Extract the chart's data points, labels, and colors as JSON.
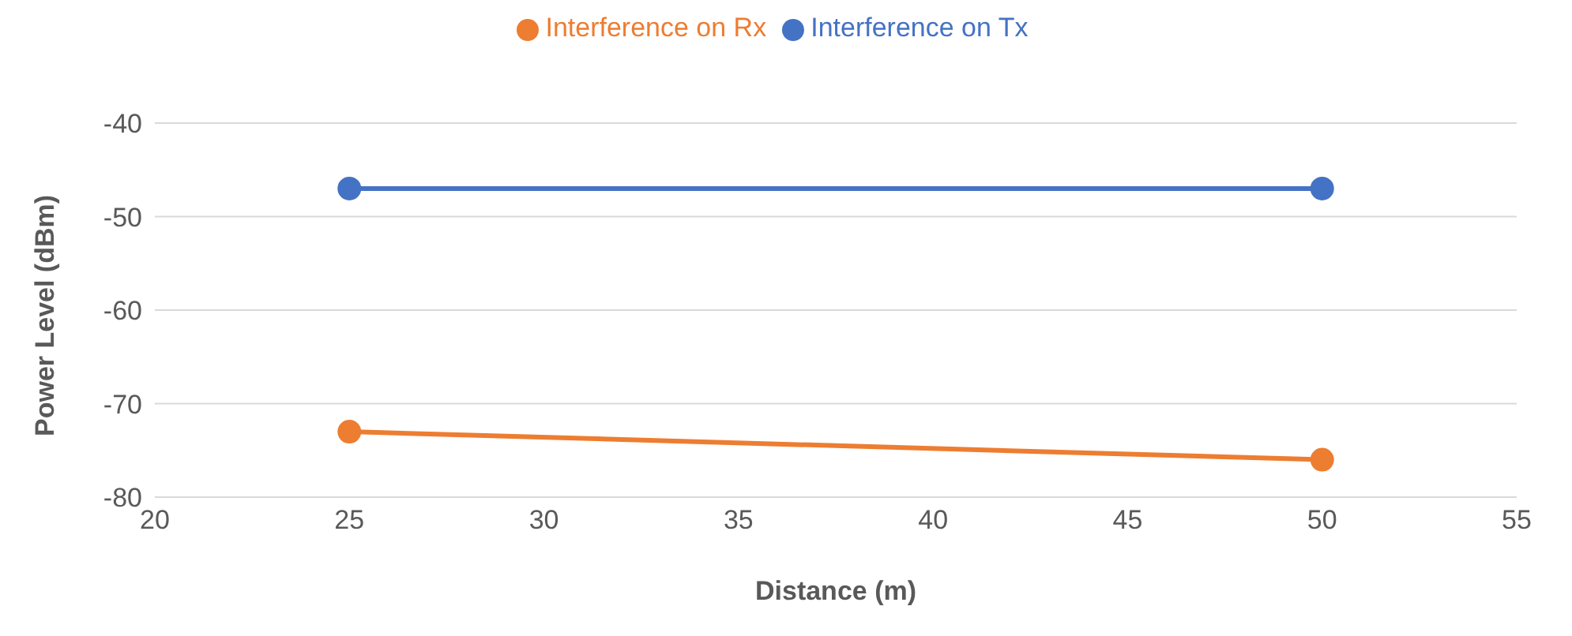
{
  "chart_data": {
    "type": "line",
    "xlabel": "Distance (m)",
    "ylabel": "Power Level (dBm)",
    "x": [
      25,
      50
    ],
    "series": [
      {
        "name": "Interference on Tx",
        "color": "#4472c4",
        "values": [
          -47,
          -47
        ]
      },
      {
        "name": "Interference on Rx",
        "color": "#ed7d31",
        "values": [
          -73,
          -76
        ]
      }
    ],
    "xlim": [
      20,
      55
    ],
    "xticks": [
      20,
      25,
      30,
      35,
      40,
      45,
      50,
      55
    ],
    "ylim": [
      -80,
      -40
    ],
    "yticks": [
      -80,
      -70,
      -60,
      -50,
      -40
    ],
    "grid": "y",
    "legend": "top",
    "marker": "circle",
    "line_style": "solid"
  }
}
